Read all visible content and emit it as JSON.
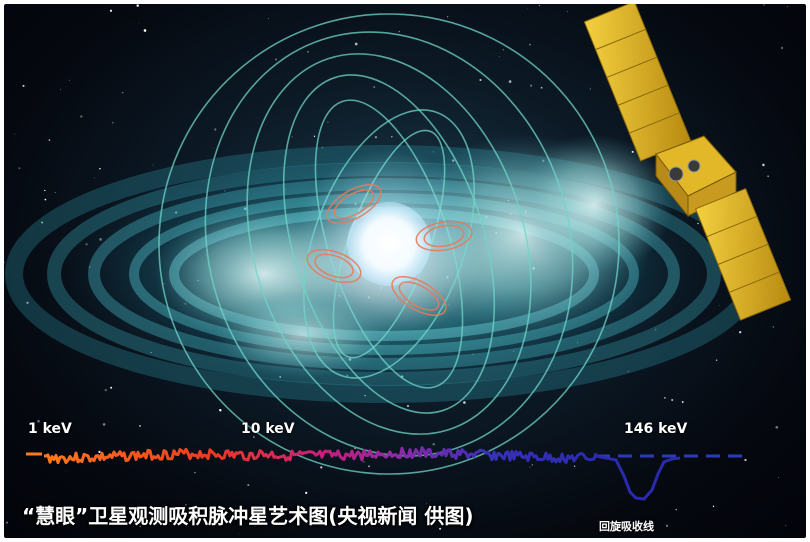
{
  "image": {
    "subject": "magnetar with satellite",
    "colors": {
      "space": "#05080f",
      "disk": "#3fb8c4",
      "star": "#ffffff",
      "field_lines": "#6fd6c8",
      "satellite_panel": "#d9b020",
      "spectrum_low": "#ff6a1a",
      "spectrum_mid": "#c0207a",
      "spectrum_high": "#2a2ab0"
    }
  },
  "labels": {
    "energy_1": "1 keV",
    "energy_2": "10 keV",
    "energy_3": "146 keV",
    "cyclotron": "回旋吸收线"
  },
  "caption": "“慧眼”卫星观测吸积脉冲星艺术图(央视新闻 供图)"
}
